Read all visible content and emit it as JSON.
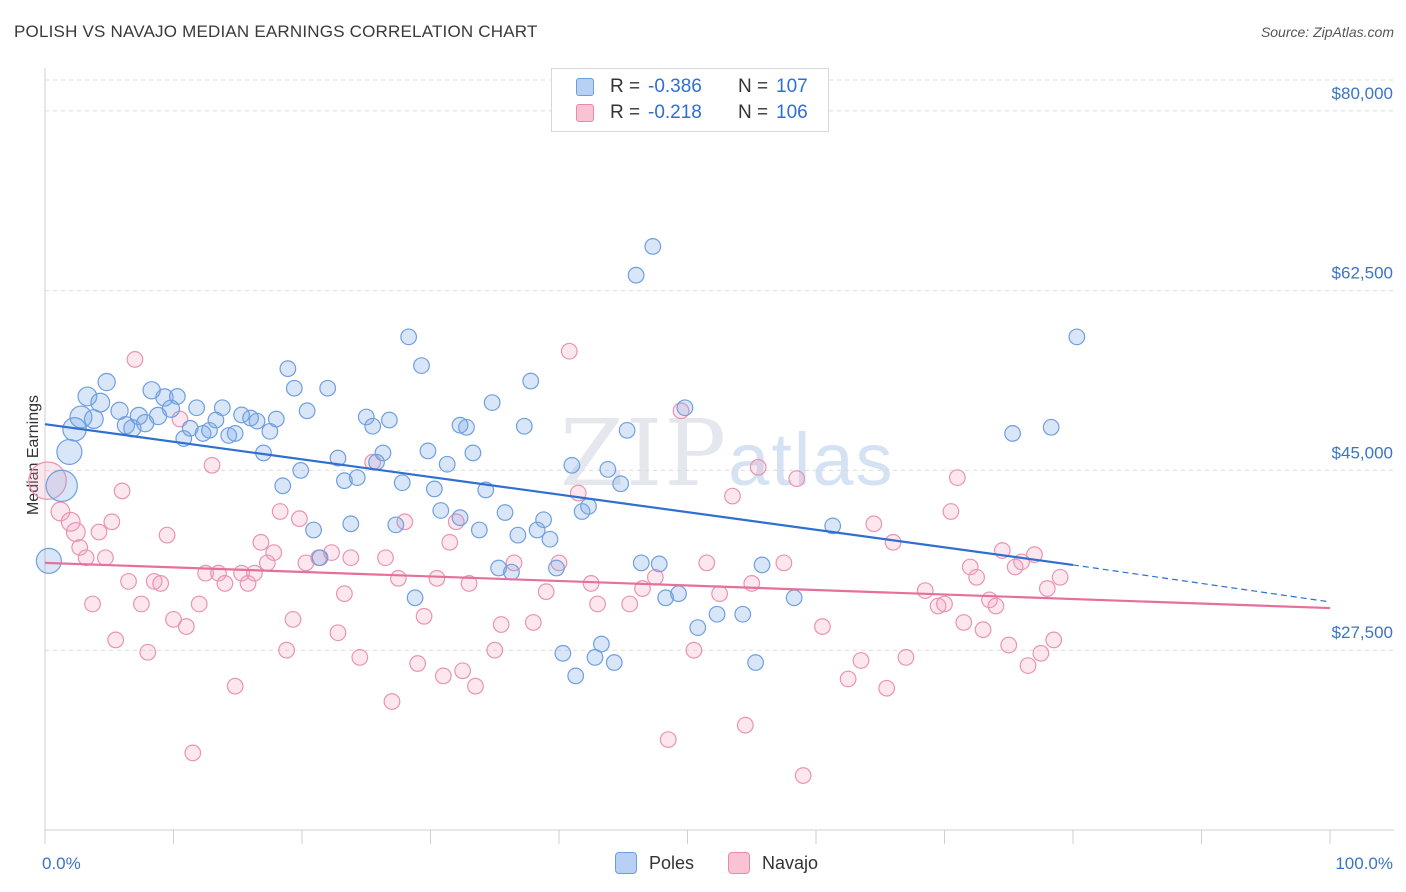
{
  "header": {
    "title": "POLISH VS NAVAJO MEDIAN EARNINGS CORRELATION CHART",
    "source": "Source: ZipAtlas.com"
  },
  "watermark": {
    "zip": "ZIP",
    "atlas": "atlas"
  },
  "legend": {
    "rows": [
      {
        "r_label": "R =",
        "r_value": "-0.386",
        "n_label": "N =",
        "n_value": "107",
        "fill": "#b8d0f3",
        "stroke": "#6b9ee0"
      },
      {
        "r_label": "R =",
        "r_value": "-0.218",
        "n_label": "N =",
        "n_value": "106",
        "fill": "#f9c3d3",
        "stroke": "#e98aa8"
      }
    ]
  },
  "bottom_legend": {
    "items": [
      {
        "label": "Poles",
        "fill": "#b8d0f3",
        "stroke": "#6b9ee0"
      },
      {
        "label": "Navajo",
        "fill": "#f9c3d3",
        "stroke": "#e98aa8"
      }
    ]
  },
  "colors": {
    "poles_fill": "rgba(120,165,230,0.28)",
    "poles_stroke": "#6f9fe0",
    "poles_line": "#2f6fd0",
    "navajo_fill": "rgba(245,160,190,0.25)",
    "navajo_stroke": "#eb93b1",
    "navajo_line": "#e5709a",
    "tick_text": "#3b74c6",
    "grid": "#dcdcdc"
  },
  "chart_data": {
    "type": "scatter",
    "title": "POLISH VS NAVAJO MEDIAN EARNINGS CORRELATION CHART",
    "ylabel": "Median Earnings",
    "xlabel": "",
    "x_ticks": [
      "0.0%",
      "100.0%"
    ],
    "y_ticks": [
      {
        "value": 27500,
        "label": "$27,500"
      },
      {
        "value": 45000,
        "label": "$45,000"
      },
      {
        "value": 62500,
        "label": "$62,500"
      },
      {
        "value": 80000,
        "label": "$80,000"
      }
    ],
    "xlim": [
      0,
      100
    ],
    "ylim": [
      10000,
      83000
    ],
    "grid": "horizontal dashed",
    "legend_position": "top-center",
    "series": [
      {
        "name": "Poles",
        "R": -0.386,
        "N": 107,
        "trend": {
          "x0": 0,
          "y0": 49500,
          "x1": 80,
          "y1": 35800,
          "dashed_to_x": 100,
          "dashed_to_y": 32200
        },
        "points": [
          [
            0.3,
            36200,
            16
          ],
          [
            1.3,
            43500,
            20
          ],
          [
            1.9,
            46800,
            16
          ],
          [
            2.3,
            49000,
            15
          ],
          [
            2.8,
            50200,
            14
          ],
          [
            3.8,
            50000,
            12
          ],
          [
            3.3,
            52200,
            12
          ],
          [
            4.3,
            51600,
            12
          ],
          [
            4.8,
            53600,
            11
          ],
          [
            5.8,
            50800,
            11
          ],
          [
            6.3,
            49400,
            11
          ],
          [
            6.8,
            49100,
            11
          ],
          [
            7.3,
            50300,
            11
          ],
          [
            7.8,
            49600,
            11
          ],
          [
            8.3,
            52800,
            11
          ],
          [
            8.8,
            50300,
            11
          ],
          [
            9.3,
            52100,
            11
          ],
          [
            9.8,
            51000,
            11
          ],
          [
            10.3,
            52200,
            10
          ],
          [
            10.8,
            48100,
            10
          ],
          [
            11.3,
            49100,
            10
          ],
          [
            11.8,
            51100,
            10
          ],
          [
            12.3,
            48600,
            10
          ],
          [
            12.8,
            48900,
            10
          ],
          [
            13.3,
            49900,
            10
          ],
          [
            13.8,
            51100,
            10
          ],
          [
            14.3,
            48400,
            10
          ],
          [
            14.8,
            48600,
            10
          ],
          [
            15.3,
            50400,
            10
          ],
          [
            16.0,
            50100,
            10
          ],
          [
            16.5,
            49800,
            10
          ],
          [
            17.0,
            46700,
            10
          ],
          [
            17.5,
            48800,
            10
          ],
          [
            18.0,
            50000,
            10
          ],
          [
            18.5,
            43500,
            10
          ],
          [
            18.9,
            54900,
            10
          ],
          [
            19.4,
            53000,
            10
          ],
          [
            19.9,
            45000,
            10
          ],
          [
            20.4,
            50800,
            10
          ],
          [
            20.9,
            39200,
            10
          ],
          [
            21.4,
            36500,
            10
          ],
          [
            22.0,
            53000,
            10
          ],
          [
            22.8,
            46200,
            10
          ],
          [
            23.3,
            44000,
            10
          ],
          [
            23.8,
            39800,
            10
          ],
          [
            24.3,
            44300,
            10
          ],
          [
            25.0,
            50200,
            10
          ],
          [
            25.5,
            49300,
            10
          ],
          [
            25.8,
            45800,
            10
          ],
          [
            26.3,
            46700,
            10
          ],
          [
            26.8,
            49900,
            10
          ],
          [
            27.3,
            39700,
            10
          ],
          [
            27.8,
            43800,
            10
          ],
          [
            28.3,
            58000,
            10
          ],
          [
            28.8,
            32600,
            10
          ],
          [
            29.3,
            55200,
            10
          ],
          [
            29.8,
            46900,
            10
          ],
          [
            30.3,
            43200,
            10
          ],
          [
            30.8,
            41100,
            10
          ],
          [
            31.3,
            45600,
            10
          ],
          [
            32.3,
            49400,
            10
          ],
          [
            32.8,
            49200,
            10
          ],
          [
            32.3,
            40400,
            10
          ],
          [
            33.3,
            46700,
            10
          ],
          [
            33.8,
            39200,
            10
          ],
          [
            34.3,
            43100,
            10
          ],
          [
            34.8,
            51600,
            10
          ],
          [
            35.3,
            35500,
            10
          ],
          [
            35.8,
            40900,
            10
          ],
          [
            36.3,
            35100,
            10
          ],
          [
            36.8,
            38700,
            10
          ],
          [
            37.3,
            49300,
            10
          ],
          [
            37.8,
            53700,
            10
          ],
          [
            38.3,
            39200,
            10
          ],
          [
            38.8,
            40200,
            10
          ],
          [
            39.3,
            38300,
            10
          ],
          [
            39.8,
            35500,
            10
          ],
          [
            40.3,
            27200,
            10
          ],
          [
            41.0,
            45500,
            10
          ],
          [
            41.3,
            25000,
            10
          ],
          [
            41.8,
            41000,
            10
          ],
          [
            42.3,
            41500,
            10
          ],
          [
            42.8,
            26800,
            10
          ],
          [
            43.3,
            28100,
            10
          ],
          [
            43.8,
            45100,
            10
          ],
          [
            44.3,
            26300,
            10
          ],
          [
            44.8,
            43700,
            10
          ],
          [
            45.3,
            48900,
            10
          ],
          [
            46.0,
            64000,
            10
          ],
          [
            46.4,
            36000,
            10
          ],
          [
            47.3,
            66800,
            10
          ],
          [
            47.8,
            35900,
            10
          ],
          [
            48.3,
            32600,
            10
          ],
          [
            49.3,
            33000,
            10
          ],
          [
            49.8,
            51100,
            10
          ],
          [
            50.8,
            29700,
            10
          ],
          [
            52.3,
            31000,
            10
          ],
          [
            54.3,
            31000,
            10
          ],
          [
            55.3,
            26300,
            10
          ],
          [
            55.8,
            35800,
            10
          ],
          [
            58.3,
            32600,
            10
          ],
          [
            61.3,
            39600,
            10
          ],
          [
            75.3,
            48600,
            10
          ],
          [
            78.3,
            49200,
            10
          ],
          [
            80.3,
            58000,
            10
          ]
        ]
      },
      {
        "name": "Navajo",
        "R": -0.218,
        "N": 106,
        "trend": {
          "x0": 0,
          "y0": 36000,
          "x1": 100,
          "y1": 31600
        },
        "points": [
          [
            0.2,
            44000,
            24
          ],
          [
            1.2,
            41000,
            12
          ],
          [
            2.0,
            40000,
            12
          ],
          [
            2.4,
            39000,
            12
          ],
          [
            2.7,
            37500,
            10
          ],
          [
            3.2,
            36500,
            10
          ],
          [
            3.7,
            32000,
            10
          ],
          [
            4.2,
            39000,
            10
          ],
          [
            4.7,
            36500,
            10
          ],
          [
            5.2,
            40000,
            10
          ],
          [
            5.5,
            28500,
            10
          ],
          [
            6.0,
            43000,
            10
          ],
          [
            6.5,
            34200,
            10
          ],
          [
            7.0,
            55800,
            10
          ],
          [
            7.5,
            32000,
            10
          ],
          [
            8.0,
            27300,
            10
          ],
          [
            8.5,
            34200,
            10
          ],
          [
            9.0,
            34000,
            10
          ],
          [
            9.5,
            38700,
            10
          ],
          [
            10.0,
            30500,
            10
          ],
          [
            10.5,
            50000,
            10
          ],
          [
            11.0,
            29800,
            10
          ],
          [
            11.5,
            17500,
            10
          ],
          [
            12.0,
            32000,
            10
          ],
          [
            12.5,
            35000,
            10
          ],
          [
            13.0,
            45500,
            10
          ],
          [
            13.5,
            35000,
            10
          ],
          [
            14.0,
            34000,
            10
          ],
          [
            14.8,
            24000,
            10
          ],
          [
            15.3,
            35000,
            10
          ],
          [
            15.8,
            34000,
            10
          ],
          [
            16.3,
            35000,
            10
          ],
          [
            16.8,
            38000,
            10
          ],
          [
            17.3,
            36000,
            10
          ],
          [
            17.8,
            37000,
            10
          ],
          [
            18.3,
            41000,
            10
          ],
          [
            18.8,
            27500,
            10
          ],
          [
            19.3,
            30500,
            10
          ],
          [
            19.8,
            40300,
            10
          ],
          [
            20.3,
            36000,
            10
          ],
          [
            21.3,
            36500,
            10
          ],
          [
            22.3,
            37000,
            10
          ],
          [
            22.8,
            29200,
            10
          ],
          [
            23.3,
            33000,
            10
          ],
          [
            23.8,
            36500,
            10
          ],
          [
            24.5,
            26800,
            10
          ],
          [
            25.5,
            45800,
            10
          ],
          [
            26.5,
            36500,
            10
          ],
          [
            27.0,
            22500,
            10
          ],
          [
            27.5,
            34500,
            10
          ],
          [
            28.0,
            40000,
            10
          ],
          [
            29.0,
            26200,
            10
          ],
          [
            29.5,
            30800,
            10
          ],
          [
            30.5,
            34500,
            10
          ],
          [
            31.0,
            25000,
            10
          ],
          [
            31.5,
            38000,
            10
          ],
          [
            32.0,
            40000,
            10
          ],
          [
            32.5,
            25500,
            10
          ],
          [
            33.0,
            34000,
            10
          ],
          [
            33.5,
            24000,
            10
          ],
          [
            35.0,
            27500,
            10
          ],
          [
            35.5,
            30000,
            10
          ],
          [
            36.5,
            36000,
            10
          ],
          [
            38.0,
            30200,
            10
          ],
          [
            39.0,
            33200,
            10
          ],
          [
            40.0,
            36000,
            10
          ],
          [
            40.8,
            56600,
            10
          ],
          [
            41.5,
            42800,
            10
          ],
          [
            42.5,
            34000,
            10
          ],
          [
            43.0,
            32000,
            10
          ],
          [
            45.5,
            32000,
            10
          ],
          [
            46.5,
            33500,
            10
          ],
          [
            47.5,
            34600,
            10
          ],
          [
            48.5,
            18800,
            10
          ],
          [
            49.5,
            50800,
            10
          ],
          [
            50.5,
            27500,
            10
          ],
          [
            51.5,
            36000,
            10
          ],
          [
            52.5,
            33000,
            10
          ],
          [
            53.5,
            42500,
            10
          ],
          [
            54.5,
            20200,
            10
          ],
          [
            55.0,
            34000,
            10
          ],
          [
            55.5,
            45300,
            10
          ],
          [
            57.5,
            36000,
            10
          ],
          [
            58.5,
            44200,
            10
          ],
          [
            59.0,
            15300,
            10
          ],
          [
            60.5,
            29800,
            10
          ],
          [
            62.5,
            24700,
            10
          ],
          [
            63.5,
            26500,
            10
          ],
          [
            64.5,
            39800,
            10
          ],
          [
            65.5,
            23800,
            10
          ],
          [
            66.0,
            38000,
            10
          ],
          [
            67.0,
            26800,
            10
          ],
          [
            68.5,
            33300,
            10
          ],
          [
            69.5,
            31800,
            10
          ],
          [
            70.0,
            32000,
            10
          ],
          [
            70.5,
            41000,
            10
          ],
          [
            71.0,
            44300,
            10
          ],
          [
            71.5,
            30200,
            10
          ],
          [
            72.0,
            35600,
            10
          ],
          [
            72.5,
            34600,
            10
          ],
          [
            73.0,
            29500,
            10
          ],
          [
            73.5,
            32400,
            10
          ],
          [
            74.0,
            31800,
            10
          ],
          [
            74.5,
            37200,
            10
          ],
          [
            75.0,
            28000,
            10
          ],
          [
            75.5,
            35600,
            10
          ],
          [
            76.0,
            36100,
            10
          ],
          [
            76.5,
            26000,
            10
          ],
          [
            77.0,
            36800,
            10
          ],
          [
            77.5,
            27200,
            10
          ],
          [
            78.0,
            33500,
            10
          ],
          [
            78.5,
            28500,
            10
          ],
          [
            79.0,
            34600,
            10
          ]
        ]
      }
    ]
  }
}
